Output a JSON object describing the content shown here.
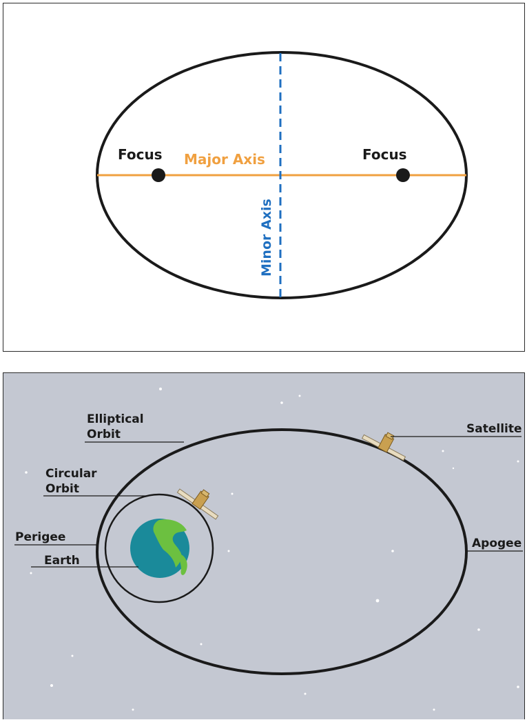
{
  "ellipse_diagram": {
    "focus_left_label": "Focus",
    "focus_right_label": "Focus",
    "major_axis_label": "Major Axis",
    "minor_axis_label": "Minor Axis",
    "colors": {
      "outline": "#1a1a1a",
      "major_axis": "#f0a040",
      "minor_axis": "#1f6fc0",
      "focus": "#1a1a1a"
    }
  },
  "orbit_diagram": {
    "elliptical_orbit_label_line1": "Elliptical",
    "elliptical_orbit_label_line2": "Orbit",
    "circular_orbit_label_line1": "Circular",
    "circular_orbit_label_line2": "Orbit",
    "perigee_label": "Perigee",
    "earth_label": "Earth",
    "satellite_label": "Satellite",
    "apogee_label": "Apogee",
    "colors": {
      "background": "#c4c8d2",
      "orbit": "#1a1a1a",
      "earth_ocean": "#1a8a9a",
      "earth_land": "#6cc040",
      "satellite_body": "#c9a050"
    }
  }
}
